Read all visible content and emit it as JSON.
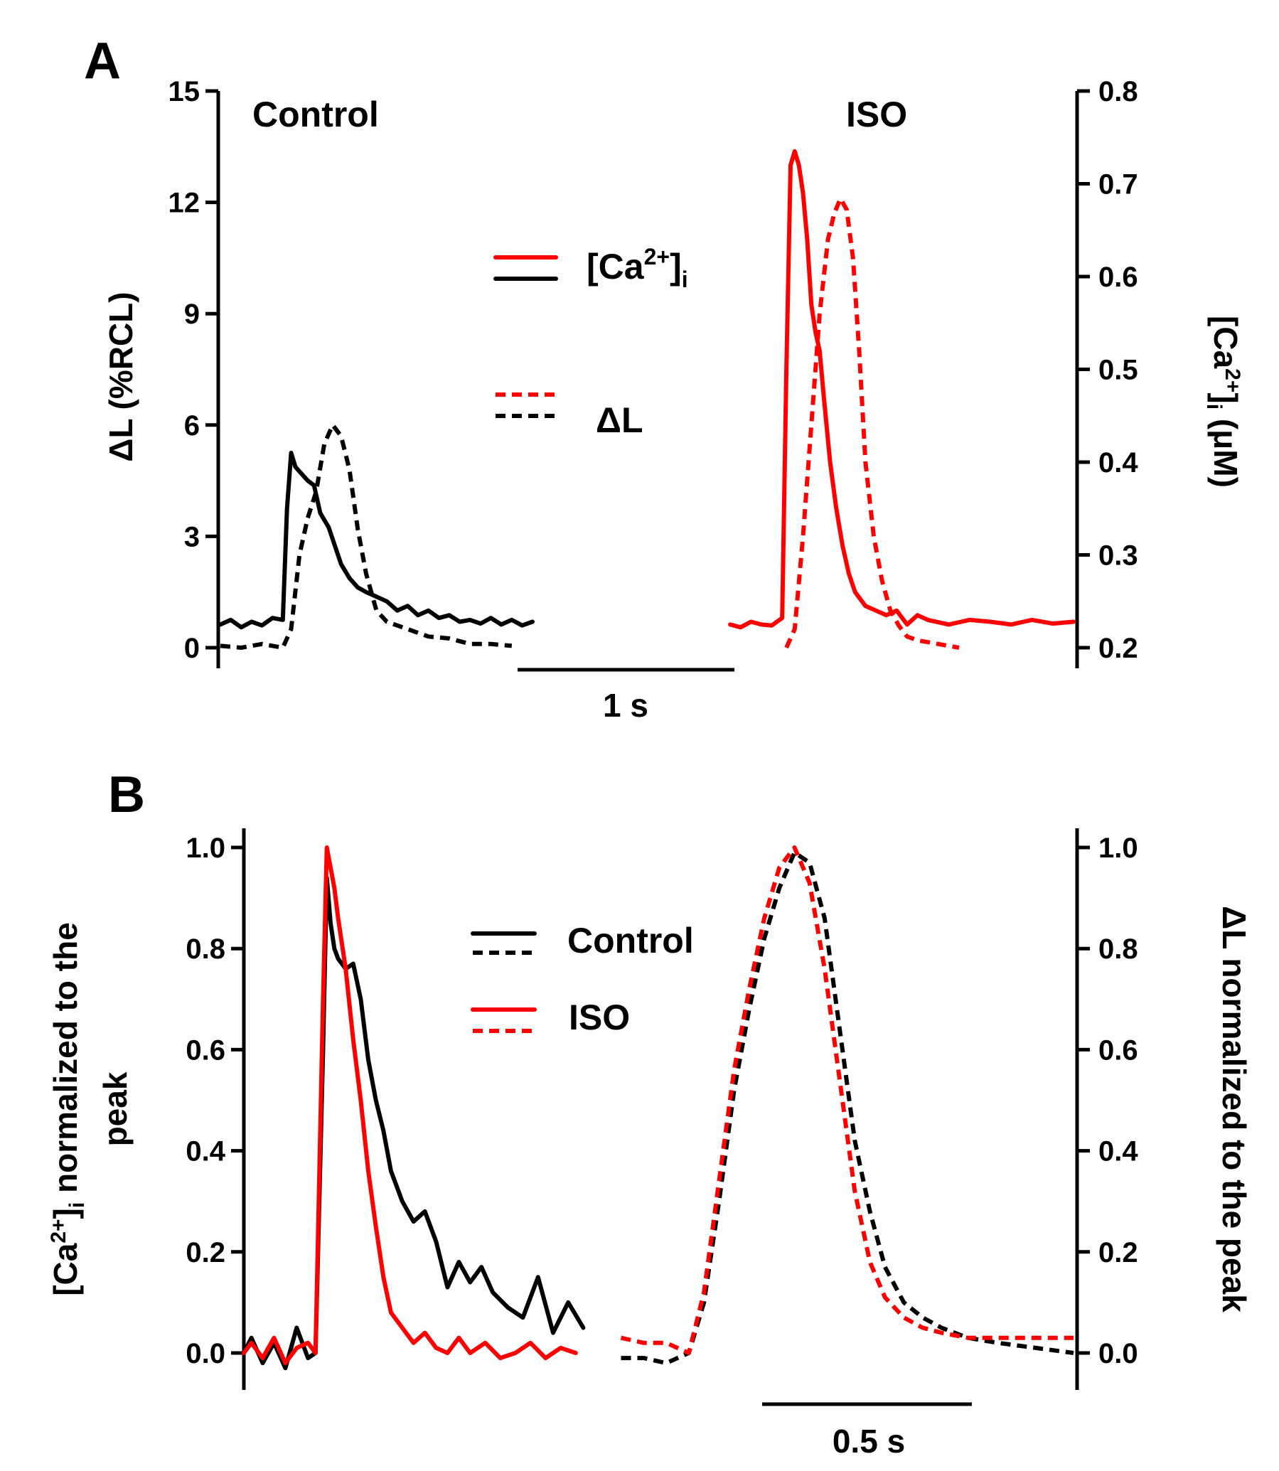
{
  "chart_data": [
    {
      "panel": "A",
      "type": "line",
      "y_left": {
        "label": "ΔL (%RCL)",
        "ticks": [
          "0",
          "3",
          "6",
          "9",
          "12",
          "15"
        ],
        "lim": [
          0,
          15
        ]
      },
      "y_right": {
        "label_main": "[Ca",
        "label_sup": "2+",
        "label_close": "]",
        "label_sub": "i",
        "label_unit": " (μM)",
        "ticks": [
          "0.2",
          "0.3",
          "0.4",
          "0.5",
          "0.6",
          "0.7",
          "0.8"
        ],
        "lim": [
          0.2,
          0.8
        ]
      },
      "condition_labels": [
        "Control",
        "ISO"
      ],
      "legend": [
        {
          "text_main": "[Ca",
          "text_sup": "2+",
          "text_close": "]",
          "text_sub": "i",
          "style": "solid",
          "colors": [
            "#ff0000",
            "#000000"
          ]
        },
        {
          "text_main": "ΔL",
          "text_sup": "",
          "text_close": "",
          "text_sub": "",
          "style": "dashed",
          "colors": [
            "#ff0000",
            "#000000"
          ]
        }
      ],
      "scale_bar": {
        "label": "1 s"
      },
      "series": [
        {
          "condition": "Control",
          "signal": "ca",
          "axis": "right",
          "color": "#000000",
          "style": "solid",
          "x": [
            0,
            0.05,
            0.1,
            0.15,
            0.2,
            0.25,
            0.3,
            0.32,
            0.34,
            0.36,
            0.38,
            0.4,
            0.42,
            0.45,
            0.48,
            0.52,
            0.55,
            0.58,
            0.62,
            0.66,
            0.7,
            0.75,
            0.8,
            0.85,
            0.9,
            0.95,
            1.0,
            1.05,
            1.1,
            1.15,
            1.2,
            1.25,
            1.3,
            1.35,
            1.4,
            1.45,
            1.5
          ],
          "y": [
            0.225,
            0.23,
            0.222,
            0.228,
            0.224,
            0.232,
            0.23,
            0.35,
            0.41,
            0.395,
            0.39,
            0.385,
            0.38,
            0.375,
            0.345,
            0.33,
            0.31,
            0.29,
            0.275,
            0.265,
            0.26,
            0.255,
            0.25,
            0.24,
            0.245,
            0.235,
            0.24,
            0.232,
            0.235,
            0.228,
            0.23,
            0.226,
            0.232,
            0.225,
            0.23,
            0.224,
            0.228
          ]
        },
        {
          "condition": "Control",
          "signal": "dl",
          "axis": "left",
          "color": "#000000",
          "style": "dashed",
          "x": [
            0,
            0.1,
            0.2,
            0.3,
            0.34,
            0.38,
            0.42,
            0.46,
            0.5,
            0.54,
            0.58,
            0.62,
            0.66,
            0.7,
            0.75,
            0.8,
            0.9,
            1.0,
            1.1,
            1.2,
            1.3,
            1.4
          ],
          "y": [
            0.05,
            0.0,
            0.1,
            0.0,
            0.5,
            2.5,
            3.5,
            4.2,
            5.5,
            6.0,
            5.7,
            4.8,
            3.2,
            2.0,
            1.0,
            0.7,
            0.5,
            0.3,
            0.25,
            0.1,
            0.1,
            0.05
          ]
        },
        {
          "condition": "ISO",
          "signal": "ca",
          "axis": "right",
          "color": "#ff0000",
          "style": "solid",
          "x": [
            2.45,
            2.5,
            2.55,
            2.6,
            2.65,
            2.7,
            2.72,
            2.74,
            2.76,
            2.78,
            2.8,
            2.82,
            2.84,
            2.86,
            2.88,
            2.9,
            2.93,
            2.96,
            2.99,
            3.02,
            3.05,
            3.1,
            3.15,
            3.2,
            3.25,
            3.3,
            3.35,
            3.4,
            3.5,
            3.6,
            3.7,
            3.8,
            3.9,
            4.0,
            4.1
          ],
          "y": [
            0.225,
            0.222,
            0.228,
            0.225,
            0.224,
            0.232,
            0.5,
            0.72,
            0.735,
            0.72,
            0.69,
            0.64,
            0.57,
            0.54,
            0.52,
            0.47,
            0.4,
            0.35,
            0.31,
            0.28,
            0.26,
            0.245,
            0.24,
            0.235,
            0.24,
            0.225,
            0.235,
            0.23,
            0.225,
            0.23,
            0.228,
            0.225,
            0.23,
            0.226,
            0.228
          ]
        },
        {
          "condition": "ISO",
          "signal": "dl",
          "axis": "left",
          "color": "#ff0000",
          "style": "dashed",
          "x": [
            2.72,
            2.76,
            2.8,
            2.84,
            2.88,
            2.92,
            2.95,
            2.98,
            3.01,
            3.04,
            3.07,
            3.1,
            3.14,
            3.18,
            3.22,
            3.26,
            3.3,
            3.35,
            3.45,
            3.55
          ],
          "y": [
            0.0,
            0.5,
            3.0,
            6.0,
            9.0,
            11.0,
            11.7,
            12.1,
            11.8,
            10.5,
            8.0,
            5.0,
            3.0,
            1.8,
            1.0,
            0.6,
            0.3,
            0.2,
            0.1,
            0.0
          ]
        }
      ]
    },
    {
      "panel": "B",
      "type": "line",
      "y_left": {
        "label_main": "[Ca",
        "label_sup": "2+",
        "label_close": "]",
        "label_sub": "i",
        "label_line1_rest": " normalized to the",
        "label_line2": "peak",
        "ticks": [
          "0.0",
          "0.2",
          "0.4",
          "0.6",
          "0.8",
          "1.0"
        ],
        "lim": [
          0,
          1
        ]
      },
      "y_right": {
        "label": "ΔL normalized to the peak",
        "ticks": [
          "0.0",
          "0.2",
          "0.4",
          "0.6",
          "0.8",
          "1.0"
        ],
        "lim": [
          0,
          1
        ]
      },
      "legend": [
        {
          "text": "Control",
          "text_color": "#000000",
          "colors": [
            "#000000",
            "#000000"
          ]
        },
        {
          "text": "ISO",
          "text_color": "#555555",
          "colors": [
            "#ff0000",
            "#ff0000"
          ]
        }
      ],
      "scale_bar": {
        "label": "0.5 s"
      },
      "series": [
        {
          "name": "Control",
          "signal": "ca",
          "color": "#000000",
          "style": "solid",
          "x": [
            0,
            0.02,
            0.05,
            0.08,
            0.11,
            0.14,
            0.17,
            0.19,
            0.21,
            0.22,
            0.23,
            0.24,
            0.25,
            0.27,
            0.29,
            0.31,
            0.33,
            0.35,
            0.37,
            0.39,
            0.42,
            0.45,
            0.48,
            0.51,
            0.54,
            0.57,
            0.6,
            0.63,
            0.66,
            0.7,
            0.74,
            0.78,
            0.82,
            0.86,
            0.9
          ],
          "y": [
            0.0,
            0.03,
            -0.02,
            0.02,
            -0.03,
            0.05,
            -0.01,
            0.0,
            0.6,
            0.94,
            0.85,
            0.8,
            0.78,
            0.76,
            0.77,
            0.7,
            0.58,
            0.5,
            0.44,
            0.36,
            0.3,
            0.26,
            0.28,
            0.22,
            0.13,
            0.18,
            0.14,
            0.17,
            0.12,
            0.09,
            0.07,
            0.15,
            0.04,
            0.1,
            0.05
          ]
        },
        {
          "name": "ISO",
          "signal": "ca",
          "color": "#ff0000",
          "style": "solid",
          "x": [
            0,
            0.02,
            0.05,
            0.08,
            0.11,
            0.14,
            0.17,
            0.19,
            0.21,
            0.22,
            0.23,
            0.24,
            0.25,
            0.27,
            0.29,
            0.31,
            0.33,
            0.35,
            0.37,
            0.39,
            0.42,
            0.45,
            0.48,
            0.51,
            0.54,
            0.57,
            0.6,
            0.64,
            0.68,
            0.72,
            0.76,
            0.8,
            0.84,
            0.88
          ],
          "y": [
            0.0,
            0.02,
            -0.01,
            0.03,
            -0.02,
            0.01,
            0.02,
            0.0,
            0.7,
            1.0,
            0.96,
            0.92,
            0.86,
            0.76,
            0.62,
            0.5,
            0.36,
            0.25,
            0.15,
            0.08,
            0.05,
            0.02,
            0.04,
            0.01,
            0.0,
            0.03,
            0.0,
            0.02,
            -0.01,
            0.0,
            0.02,
            -0.01,
            0.01,
            0.0
          ]
        },
        {
          "name": "Control",
          "signal": "dl",
          "color": "#000000",
          "style": "dashed",
          "x": [
            1.0,
            1.06,
            1.12,
            1.18,
            1.22,
            1.26,
            1.3,
            1.34,
            1.38,
            1.42,
            1.46,
            1.5,
            1.54,
            1.58,
            1.62,
            1.66,
            1.7,
            1.75,
            1.8,
            1.85,
            1.92,
            2.0,
            2.1,
            2.2
          ],
          "y": [
            -0.01,
            -0.01,
            -0.02,
            0.0,
            0.1,
            0.3,
            0.52,
            0.68,
            0.82,
            0.92,
            0.99,
            0.97,
            0.86,
            0.64,
            0.42,
            0.28,
            0.17,
            0.1,
            0.07,
            0.05,
            0.03,
            0.02,
            0.01,
            0.0
          ]
        },
        {
          "name": "ISO",
          "signal": "dl",
          "color": "#ff0000",
          "style": "dashed",
          "x": [
            1.0,
            1.06,
            1.12,
            1.18,
            1.22,
            1.26,
            1.3,
            1.34,
            1.38,
            1.42,
            1.46,
            1.5,
            1.54,
            1.58,
            1.62,
            1.66,
            1.7,
            1.75,
            1.8,
            1.85,
            1.92,
            2.0,
            2.1,
            2.2
          ],
          "y": [
            0.03,
            0.02,
            0.02,
            0.0,
            0.12,
            0.34,
            0.56,
            0.72,
            0.86,
            0.96,
            1.0,
            0.93,
            0.76,
            0.54,
            0.32,
            0.18,
            0.11,
            0.07,
            0.05,
            0.04,
            0.03,
            0.03,
            0.03,
            0.03
          ]
        }
      ]
    }
  ]
}
